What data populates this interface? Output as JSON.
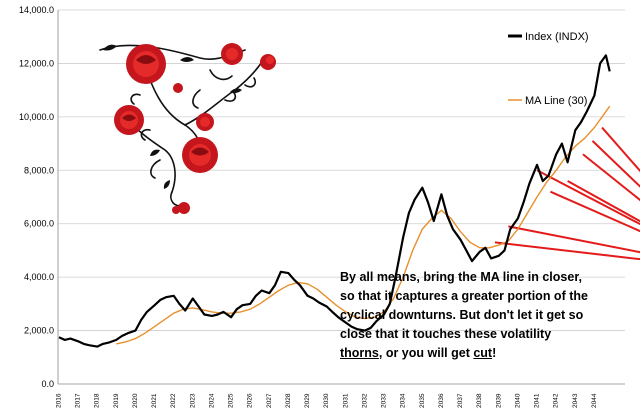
{
  "chart_data": {
    "type": "line",
    "title": "",
    "xlabel": "",
    "ylabel": "",
    "ylim": [
      0,
      14000
    ],
    "yticks": [
      "0.0",
      "2,000.0",
      "4,000.0",
      "6,000.0",
      "8,000.0",
      "10,000.0",
      "12,000.0",
      "14,000.0"
    ],
    "ytick_values": [
      0,
      2000,
      4000,
      6000,
      8000,
      10000,
      12000,
      14000
    ],
    "years": [
      "2016",
      "2017",
      "2018",
      "2019",
      "2020",
      "2021",
      "2022",
      "2023",
      "2024",
      "2025",
      "2026",
      "2027",
      "2028",
      "2029",
      "2030",
      "2031",
      "2032",
      "2033",
      "2034",
      "2035",
      "2036",
      "2037",
      "2038",
      "2039",
      "2040",
      "2041",
      "2042",
      "2043",
      "2044"
    ],
    "grid": true,
    "legend_position": "top-right",
    "series": [
      {
        "name": "Index (INDX)",
        "color": "#000000",
        "x": [
          2016.0,
          2016.3,
          2016.6,
          2017.0,
          2017.3,
          2017.6,
          2018.0,
          2018.3,
          2018.6,
          2019.0,
          2019.3,
          2019.6,
          2020.0,
          2020.3,
          2020.6,
          2021.0,
          2021.3,
          2021.6,
          2022.0,
          2022.3,
          2022.6,
          2023.0,
          2023.3,
          2023.6,
          2024.0,
          2024.3,
          2024.6,
          2025.0,
          2025.3,
          2025.6,
          2026.0,
          2026.3,
          2026.6,
          2027.0,
          2027.3,
          2027.6,
          2028.0,
          2028.3,
          2028.6,
          2029.0,
          2029.3,
          2029.6,
          2030.0,
          2030.3,
          2030.6,
          2031.0,
          2031.3,
          2031.6,
          2032.0,
          2032.3,
          2032.6,
          2033.0,
          2033.3,
          2033.6,
          2034.0,
          2034.3,
          2034.6,
          2035.0,
          2035.3,
          2035.6,
          2036.0,
          2036.3,
          2036.6,
          2037.0,
          2037.3,
          2037.6,
          2038.0,
          2038.3,
          2038.6,
          2039.0,
          2039.3,
          2039.6,
          2040.0,
          2040.3,
          2040.6,
          2041.0,
          2041.3,
          2041.6,
          2042.0,
          2042.3,
          2042.6,
          2043.0,
          2043.3,
          2043.6,
          2044.0,
          2044.3,
          2044.6,
          2044.8
        ],
        "y": [
          1750,
          1650,
          1700,
          1600,
          1500,
          1450,
          1400,
          1500,
          1550,
          1650,
          1800,
          1900,
          2000,
          2400,
          2700,
          2950,
          3150,
          3250,
          3300,
          3000,
          2750,
          3200,
          2900,
          2600,
          2550,
          2600,
          2700,
          2500,
          2800,
          2950,
          3000,
          3300,
          3500,
          3400,
          3700,
          4200,
          4150,
          3900,
          3700,
          3300,
          3200,
          3050,
          2900,
          2700,
          2500,
          2300,
          2150,
          2050,
          2000,
          2100,
          2350,
          2600,
          3000,
          4000,
          5500,
          6400,
          6900,
          7350,
          6800,
          6100,
          7100,
          6300,
          5800,
          5400,
          5000,
          4600,
          4950,
          5100,
          4700,
          4800,
          5000,
          5800,
          6200,
          6800,
          7500,
          8200,
          7600,
          7800,
          8600,
          9000,
          8300,
          9500,
          9800,
          10200,
          10800,
          12000,
          12300,
          11700
        ]
      },
      {
        "name": "MA Line (30)",
        "color": "#e8902e",
        "x": [
          2019.0,
          2019.5,
          2020.0,
          2020.5,
          2021.0,
          2021.5,
          2022.0,
          2022.5,
          2023.0,
          2023.5,
          2024.0,
          2024.5,
          2025.0,
          2025.5,
          2026.0,
          2026.5,
          2027.0,
          2027.5,
          2028.0,
          2028.5,
          2029.0,
          2029.5,
          2030.0,
          2030.5,
          2031.0,
          2031.5,
          2032.0,
          2032.5,
          2033.0,
          2033.5,
          2034.0,
          2034.5,
          2035.0,
          2035.5,
          2036.0,
          2036.5,
          2037.0,
          2037.5,
          2038.0,
          2038.5,
          2039.0,
          2039.5,
          2040.0,
          2040.5,
          2041.0,
          2041.5,
          2042.0,
          2042.5,
          2043.0,
          2043.5,
          2044.0,
          2044.5,
          2044.8
        ],
        "y": [
          1500,
          1580,
          1700,
          1900,
          2150,
          2400,
          2650,
          2800,
          2850,
          2780,
          2700,
          2650,
          2650,
          2700,
          2800,
          3000,
          3250,
          3500,
          3700,
          3800,
          3750,
          3550,
          3250,
          2950,
          2700,
          2500,
          2450,
          2500,
          2700,
          3200,
          4000,
          5000,
          5800,
          6200,
          6500,
          6200,
          5700,
          5300,
          5100,
          5100,
          5200,
          5350,
          5800,
          6400,
          7000,
          7550,
          8000,
          8500,
          8900,
          9200,
          9600,
          10100,
          10400
        ]
      }
    ],
    "annotation": {
      "line1": "By all means, bring the MA line in closer,",
      "line2": "so that it captures a greater portion of the",
      "line3": "cyclical downturns.  But don't let it get so",
      "line4a": "close that it touches these volatility",
      "line5a": "thorns",
      "line5b": ", or you will get ",
      "line5c": "cut",
      "line5d": "!"
    },
    "thorns": {
      "color": "#e31b1b",
      "apex": [
        2050.9,
        4300
      ],
      "targets": [
        [
          2041.0,
          8000
        ],
        [
          2041.7,
          7200
        ],
        [
          2042.6,
          7600
        ],
        [
          2043.4,
          8600
        ],
        [
          2043.9,
          9100
        ],
        [
          2044.4,
          9600
        ],
        [
          2039.5,
          5900
        ],
        [
          2038.8,
          5300
        ]
      ]
    },
    "decoration": "rose-vine-image"
  }
}
